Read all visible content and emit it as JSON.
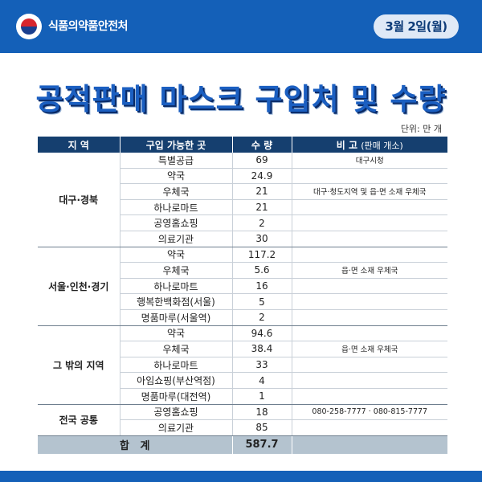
{
  "header": {
    "agency": "식품의약품안전처",
    "date": "3월 2일(월)"
  },
  "title": "공적판매 마스크 구입처 및 수량",
  "unit": "단위: 만 개",
  "table": {
    "headers": {
      "region": "지 역",
      "place": "구입 가능한 곳",
      "qty": "수 량",
      "note": "비 고",
      "note_sub": "(판매 개소)"
    },
    "groups": [
      {
        "region": "대구·경북",
        "rows": [
          {
            "place": "특별공급",
            "qty": "69",
            "note": "대구시청"
          },
          {
            "place": "약국",
            "qty": "24.9",
            "note": ""
          },
          {
            "place": "우체국",
            "qty": "21",
            "note": "대구·청도지역 및 읍·면 소재 우체국"
          },
          {
            "place": "하나로마트",
            "qty": "21",
            "note": ""
          },
          {
            "place": "공영홈쇼핑",
            "qty": "2",
            "note": ""
          },
          {
            "place": "의료기관",
            "qty": "30",
            "note": ""
          }
        ]
      },
      {
        "region": "서울·인천·경기",
        "rows": [
          {
            "place": "약국",
            "qty": "117.2",
            "note": ""
          },
          {
            "place": "우체국",
            "qty": "5.6",
            "note": "읍·면 소재 우체국"
          },
          {
            "place": "하나로마트",
            "qty": "16",
            "note": ""
          },
          {
            "place": "행복한백화점(서울)",
            "qty": "5",
            "note": ""
          },
          {
            "place": "명품마루(서울역)",
            "qty": "2",
            "note": ""
          }
        ]
      },
      {
        "region": "그 밖의 지역",
        "rows": [
          {
            "place": "약국",
            "qty": "94.6",
            "note": ""
          },
          {
            "place": "우체국",
            "qty": "38.4",
            "note": "읍·면 소재 우체국"
          },
          {
            "place": "하나로마트",
            "qty": "33",
            "note": ""
          },
          {
            "place": "아임쇼핑(부산역점)",
            "qty": "4",
            "note": ""
          },
          {
            "place": "명품마루(대전역)",
            "qty": "1",
            "note": ""
          }
        ]
      },
      {
        "region": "전국 공통",
        "rows": [
          {
            "place": "공영홈쇼핑",
            "qty": "18",
            "note": "080-258-7777 · 080-815-7777"
          },
          {
            "place": "의료기관",
            "qty": "85",
            "note": ""
          }
        ]
      }
    ],
    "total": {
      "label": "합   계",
      "qty": "587.7",
      "note": ""
    }
  },
  "colors": {
    "brand_blue": "#1460b8",
    "header_navy": "#153f6f",
    "total_gray": "#b4c3cf",
    "title_blue": "#1b5fc1"
  }
}
